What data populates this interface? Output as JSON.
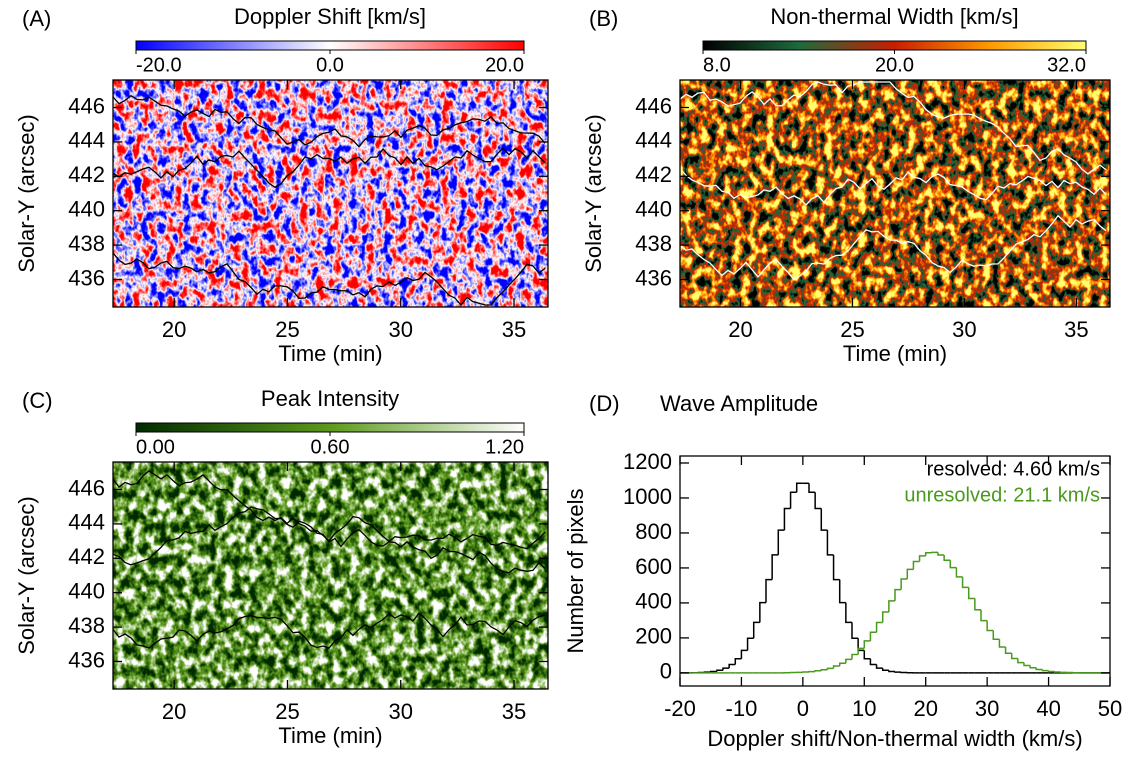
{
  "chart_data": [
    {
      "type": "image",
      "panel_label": "(A)",
      "title": "Doppler Shift [km/s]",
      "xlabel": "Time (min)",
      "ylabel": "Solar-Y (arcsec)",
      "xlim": [
        17.3,
        36.5
      ],
      "xticks": [
        20,
        25,
        30,
        35
      ],
      "ylim": [
        434.4,
        447.6
      ],
      "yticks": [
        436,
        438,
        440,
        442,
        444,
        446
      ],
      "colorbar": {
        "lim": [
          -20,
          20
        ],
        "ticks": [
          {
            "value": -20,
            "label": "-20.0"
          },
          {
            "value": 0,
            "label": "0.0"
          },
          {
            "value": 20,
            "label": "20.0"
          }
        ],
        "colors": [
          "#0000ff",
          "#ffffff",
          "#ff0000"
        ]
      },
      "contour_color": "#000000"
    },
    {
      "type": "image",
      "panel_label": "(B)",
      "title": "Non-thermal Width [km/s]",
      "xlabel": "Time (min)",
      "ylabel": "Solar-Y (arcsec)",
      "xlim": [
        17.3,
        36.5
      ],
      "xticks": [
        20,
        25,
        30,
        35
      ],
      "ylim": [
        434.4,
        447.6
      ],
      "yticks": [
        436,
        438,
        440,
        442,
        444,
        446
      ],
      "colorbar": {
        "lim": [
          8,
          32
        ],
        "ticks": [
          {
            "value": 8,
            "label": "8.0"
          },
          {
            "value": 20,
            "label": "20.0"
          },
          {
            "value": 32,
            "label": "32.0"
          }
        ],
        "colors": [
          "#000000",
          "#1e6a3c",
          "#c81e00",
          "#ff9a00",
          "#ffff70"
        ]
      },
      "contour_color": "#ffffff"
    },
    {
      "type": "image",
      "panel_label": "(C)",
      "title": "Peak Intensity",
      "xlabel": "Time (min)",
      "ylabel": "Solar-Y (arcsec)",
      "xlim": [
        17.3,
        36.5
      ],
      "xticks": [
        20,
        25,
        30,
        35
      ],
      "ylim": [
        434.4,
        447.6
      ],
      "yticks": [
        436,
        438,
        440,
        442,
        444,
        446
      ],
      "colorbar": {
        "lim": [
          0,
          1.2
        ],
        "ticks": [
          {
            "value": 0,
            "label": "0.00"
          },
          {
            "value": 0.6,
            "label": "0.60"
          },
          {
            "value": 1.2,
            "label": "1.20"
          }
        ],
        "colors": [
          "#002a00",
          "#5c9a1c",
          "#ffffff"
        ]
      },
      "contour_color": "#000000"
    },
    {
      "type": "histogram",
      "panel_label": "(D)",
      "title": "Wave Amplitude",
      "xlabel": "Doppler shift/Non-thermal width (km/s)",
      "ylabel": "Number of pixels",
      "xlim": [
        -20,
        50
      ],
      "xticks": [
        -20,
        -10,
        0,
        10,
        20,
        30,
        40,
        50
      ],
      "ylim": [
        -75,
        1240
      ],
      "yticks": [
        0,
        200,
        400,
        600,
        800,
        1000,
        1200
      ],
      "bins": [
        -20,
        -19,
        -18,
        -17,
        -16,
        -15,
        -14,
        -13,
        -12,
        -11,
        -10,
        -9,
        -8,
        -7,
        -6,
        -5,
        -4,
        -3,
        -2,
        -1,
        0,
        1,
        2,
        3,
        4,
        5,
        6,
        7,
        8,
        9,
        10,
        11,
        12,
        13,
        14,
        15,
        16,
        17,
        18,
        19,
        20,
        21,
        22,
        23,
        24,
        25,
        26,
        27,
        28,
        29,
        30,
        31,
        32,
        33,
        34,
        35,
        36,
        37,
        38,
        39,
        40,
        41,
        42,
        43,
        44,
        45,
        46,
        47,
        48,
        49,
        50
      ],
      "series": [
        {
          "name": "resolved: 4.60 km/s",
          "color": "#000000",
          "values": [
            0,
            0,
            1,
            2,
            4,
            8,
            15,
            27,
            48,
            81,
            129,
            198,
            289,
            402,
            533,
            675,
            816,
            940,
            1033,
            1084,
            1084,
            1033,
            940,
            816,
            675,
            533,
            402,
            289,
            198,
            129,
            81,
            48,
            27,
            15,
            8,
            4,
            2,
            1,
            0,
            0,
            0,
            0,
            0,
            0,
            0,
            0,
            0,
            0,
            0,
            0,
            0,
            0,
            0,
            0,
            0,
            0,
            0,
            0,
            0,
            0,
            0,
            0,
            0,
            0,
            0,
            0,
            0,
            0,
            0,
            0
          ]
        },
        {
          "name": "unresolved: 21.1 km/s",
          "color": "#4a9a1e",
          "values": [
            0,
            0,
            0,
            0,
            0,
            0,
            0,
            0,
            0,
            0,
            0,
            0,
            0,
            0,
            0,
            0,
            0,
            1,
            2,
            3,
            5,
            7,
            12,
            18,
            26,
            39,
            55,
            77,
            105,
            140,
            183,
            232,
            288,
            348,
            412,
            476,
            537,
            592,
            637,
            669,
            687,
            689,
            674,
            644,
            602,
            549,
            489,
            425,
            361,
            299,
            242,
            192,
            148,
            112,
            82,
            59,
            42,
            29,
            19,
            13,
            8,
            5,
            3,
            2,
            1,
            0,
            0,
            0,
            0,
            0
          ]
        }
      ]
    }
  ]
}
